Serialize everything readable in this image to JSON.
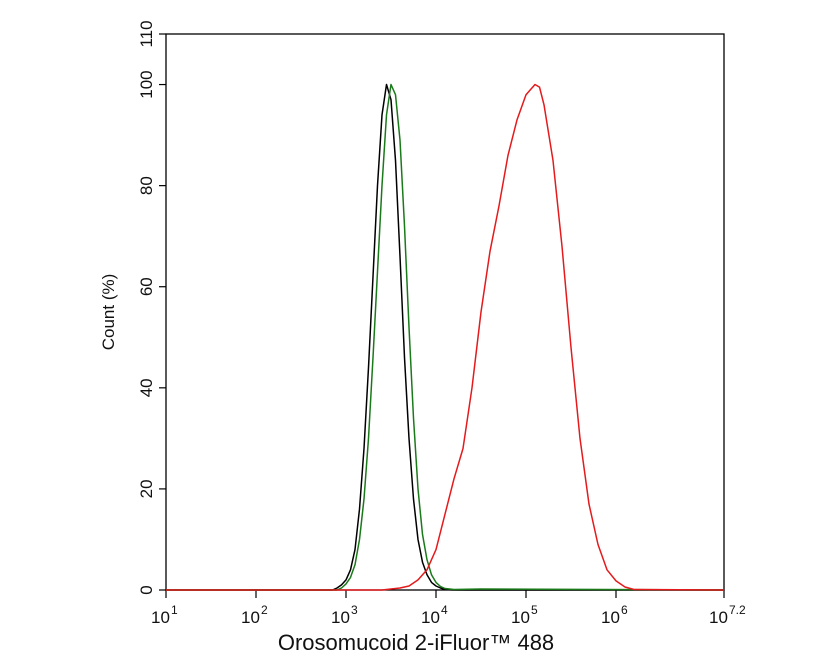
{
  "chart_data": {
    "type": "line",
    "title": "",
    "xlabel": "Orosomucoid 2-iFluor™ 488",
    "ylabel": "Count  (%)",
    "x_scale": "log10",
    "xlim": [
      1,
      7.2
    ],
    "ylim": [
      0,
      110
    ],
    "grid": false,
    "legend": "none",
    "x_ticks": [
      {
        "base": "10",
        "exp": "1"
      },
      {
        "base": "10",
        "exp": "2"
      },
      {
        "base": "10",
        "exp": "3"
      },
      {
        "base": "10",
        "exp": "4"
      },
      {
        "base": "10",
        "exp": "5"
      },
      {
        "base": "10",
        "exp": "6"
      },
      {
        "base": "10",
        "exp": "7.2"
      }
    ],
    "y_ticks": [
      "0",
      "20",
      "40",
      "60",
      "80",
      "100",
      "110"
    ],
    "series": [
      {
        "color": "#000000",
        "x": [
          1,
          2.5,
          2.85,
          2.9,
          2.95,
          3.0,
          3.05,
          3.1,
          3.15,
          3.2,
          3.25,
          3.3,
          3.35,
          3.4,
          3.45,
          3.5,
          3.55,
          3.6,
          3.65,
          3.7,
          3.75,
          3.8,
          3.85,
          3.9,
          3.95,
          4.0,
          4.05,
          4.1,
          4.2,
          7.2
        ],
        "y": [
          0,
          0,
          0,
          0.4,
          1.0,
          2.0,
          4.0,
          8.0,
          16,
          28,
          44,
          62,
          80,
          94,
          100,
          97,
          85,
          66,
          46,
          30,
          18,
          10,
          5.5,
          3.0,
          1.5,
          0.8,
          0.4,
          0.1,
          0,
          0
        ]
      },
      {
        "color": "#1a7a1a",
        "x": [
          1,
          2.6,
          2.9,
          2.95,
          3.0,
          3.05,
          3.1,
          3.15,
          3.2,
          3.25,
          3.3,
          3.35,
          3.4,
          3.45,
          3.5,
          3.55,
          3.6,
          3.65,
          3.7,
          3.75,
          3.8,
          3.85,
          3.9,
          3.95,
          4.0,
          4.05,
          4.1,
          4.2,
          4.5,
          7.2
        ],
        "y": [
          0,
          0,
          0,
          0.4,
          1.2,
          2.5,
          5.0,
          10,
          18,
          30,
          46,
          63,
          80,
          94,
          100,
          98,
          89,
          72,
          52,
          34,
          20,
          11,
          6,
          3.0,
          1.5,
          0.7,
          0.3,
          0.1,
          0.2,
          0
        ]
      },
      {
        "color": "#e41a1c",
        "x": [
          1,
          3.4,
          3.5,
          3.6,
          3.7,
          3.8,
          3.9,
          4.0,
          4.1,
          4.2,
          4.3,
          4.4,
          4.5,
          4.6,
          4.7,
          4.8,
          4.9,
          5.0,
          5.1,
          5.15,
          5.2,
          5.3,
          5.4,
          5.5,
          5.6,
          5.7,
          5.8,
          5.9,
          6.0,
          6.1,
          6.2,
          7.2
        ],
        "y": [
          0,
          0,
          0.2,
          0.4,
          0.8,
          2.0,
          4.0,
          8.0,
          15,
          22,
          28,
          40,
          55,
          67,
          76,
          86,
          93,
          98,
          100,
          99.5,
          96,
          85,
          68,
          48,
          30,
          17,
          9,
          4,
          1.8,
          0.6,
          0.1,
          0
        ]
      }
    ]
  }
}
